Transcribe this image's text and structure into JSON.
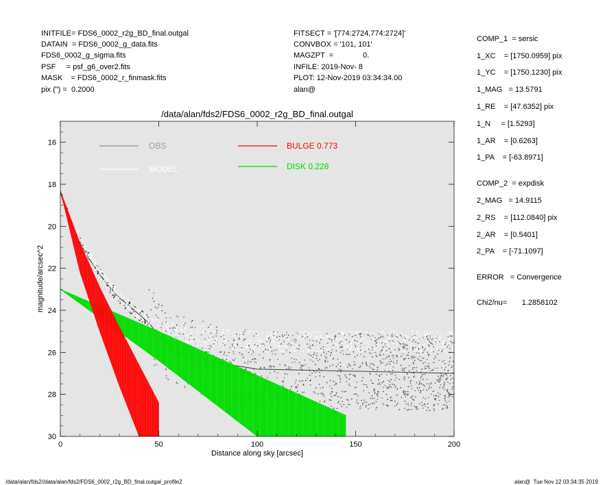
{
  "header_left": [
    "INITFILE= FDS6_0002_r2g_BD_final.outgal",
    "DATAIN  = FDS6_0002_g_data.fits",
    "FDS6_0002_g_sigma.fits",
    "PSF     = psf_g6_over2.fits",
    "MASK    = FDS6_0002_r_finmask.fits",
    "pix (\") =  0.2000"
  ],
  "header_mid": [
    "FITSECT = '[774:2724,774:2724]'",
    "CONVBOX = '101, 101'",
    "MAGZPT  =              0.",
    "INFILE: 2019-Nov- 8",
    "PLOT: 12-Nov-2019 03:34:34.00",
    "alan@"
  ],
  "right_panel": [
    "COMP_1  = sersic",
    "1_XC    = [1750.0959] pix",
    "1_YC    = [1750.1230] pix",
    "1_MAG   = 13.5791",
    "1_RE    = [47.6352] pix",
    "1_N     = [1.5293]",
    "1_AR    = [0.6263]",
    "1_PA    = [-63.8971]",
    "COMP_2  = expdisk",
    "2_MAG   = 14.9115",
    "2_RS    = [112.0840] pix",
    "2_AR    = [0.5401]",
    "2_PA    = [-71.1097]",
    "ERROR   = Convergence",
    "Chi2/nu=       1.2858102"
  ],
  "footer": {
    "left": "/data/alan/fds2//data/alan/fds2/FDS6_0002_r2g_BD_final.outgal_profile2",
    "right": "alan@  Tue Nov 12 03:34:35 2019"
  },
  "chart_data": {
    "type": "scatter",
    "title": "/data/alan/fds2/FDS6_0002_r2g_BD_final.outgal",
    "xlabel": "Distance along sky [arcsec]",
    "ylabel": "magnitude/arcsec^2",
    "xlim": [
      0,
      200
    ],
    "ylim": [
      30,
      15
    ],
    "inverted_y": true,
    "x_ticks": [
      0,
      50,
      100,
      150,
      200
    ],
    "y_ticks": [
      16,
      18,
      20,
      22,
      24,
      26,
      28,
      30
    ],
    "background": "#e5e5e5",
    "legend": [
      {
        "label": "OBS",
        "color": "#808080"
      },
      {
        "label": "MODEL",
        "color": "#ffffff"
      },
      {
        "label": "BULGE  0.773",
        "color": "#ff0000"
      },
      {
        "label": "DISK  0.228",
        "color": "#00dd00"
      }
    ],
    "series": [
      {
        "name": "OBS",
        "color": "#404040",
        "x": [
          0,
          2,
          5,
          8,
          10,
          15,
          20,
          25,
          30,
          35,
          40,
          45,
          50,
          60,
          80,
          100,
          150,
          200
        ],
        "y": [
          18.4,
          19.0,
          19.8,
          20.4,
          20.8,
          21.6,
          22.3,
          22.9,
          23.4,
          23.8,
          24.2,
          24.6,
          25.2,
          26.0,
          26.5,
          26.8,
          26.9,
          27.0
        ]
      },
      {
        "name": "MODEL",
        "color": "#ffffff",
        "x": [
          0,
          10,
          20,
          30,
          40,
          50,
          100,
          150,
          200
        ],
        "y": [
          18.3,
          20.6,
          22.2,
          23.3,
          24.2,
          25.0,
          25.5,
          25.5,
          25.5
        ]
      },
      {
        "name": "BULGE",
        "color": "#ff0000",
        "x": [
          0,
          10,
          20,
          30,
          40,
          50
        ],
        "y_bright": [
          18.3,
          20.8,
          22.9,
          24.8,
          26.6,
          28.4
        ],
        "y_faint": [
          18.3,
          22.2,
          25.0,
          27.6,
          30.0,
          30.0
        ]
      },
      {
        "name": "DISK",
        "color": "#00dd00",
        "x": [
          0,
          50,
          100,
          145
        ],
        "y_bright": [
          23.0,
          25.0,
          27.1,
          29.0
        ],
        "y_faint": [
          23.0,
          26.4,
          30.0,
          30.0
        ]
      }
    ]
  }
}
